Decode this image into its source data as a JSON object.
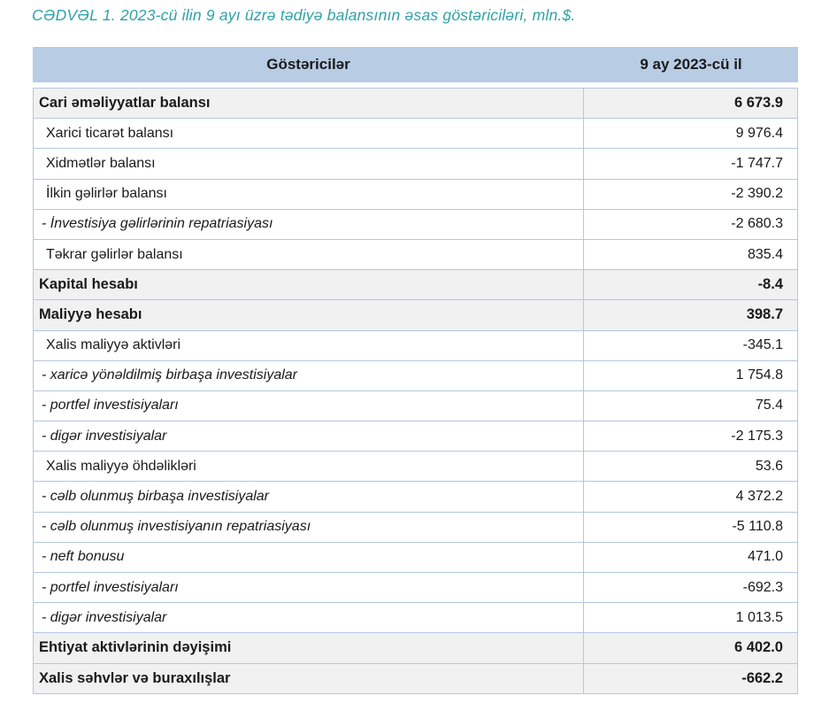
{
  "title": "CƏDVƏL 1. 2023-cü ilin 9 ayı üzrə tədiyə balansının əsas göstəriciləri, mln.$.",
  "table": {
    "columns": {
      "indicator": "Göstəricilər",
      "period": "9 ay 2023-cü il"
    },
    "rows": [
      {
        "label": "Cari əməliyyatlar balansı",
        "value": "6 673.9",
        "style": "bold"
      },
      {
        "label": "Xarici ticarət balansı",
        "value": "9 976.4",
        "style": "normal"
      },
      {
        "label": "Xidmətlər balansı",
        "value": "-1 747.7",
        "style": "normal"
      },
      {
        "label": "İlkin gəlirlər balansı",
        "value": "-2 390.2",
        "style": "normal"
      },
      {
        "label": "- İnvestisiya gəlirlərinin repatriasiyası",
        "value": "-2 680.3",
        "style": "italic"
      },
      {
        "label": "Təkrar gəlirlər balansı",
        "value": "835.4",
        "style": "normal"
      },
      {
        "label": "Kapital hesabı",
        "value": "-8.4",
        "style": "bold"
      },
      {
        "label": "Maliyyə hesabı",
        "value": "398.7",
        "style": "bold"
      },
      {
        "label": "Xalis maliyyə aktivləri",
        "value": "-345.1",
        "style": "normal"
      },
      {
        "label": "- xaricə yönəldilmiş birbaşa investisiyalar",
        "value": "1 754.8",
        "style": "italic"
      },
      {
        "label": "- portfel investisiyaları",
        "value": "75.4",
        "style": "italic"
      },
      {
        "label": "- digər investisiyalar",
        "value": "-2 175.3",
        "style": "italic"
      },
      {
        "label": "Xalis maliyyə öhdəlikləri",
        "value": "53.6",
        "style": "normal"
      },
      {
        "label": "- cəlb olunmuş birbaşa investisiyalar",
        "value": "4 372.2",
        "style": "italic"
      },
      {
        "label": "- cəlb olunmuş investisiyanın repatriasiyası",
        "value": "-5 110.8",
        "style": "italic"
      },
      {
        "label": "- neft bonusu",
        "value": "471.0",
        "style": "italic"
      },
      {
        "label": "- portfel investisiyaları",
        "value": "-692.3",
        "style": "italic"
      },
      {
        "label": "- digər investisiyalar",
        "value": "1 013.5",
        "style": "italic"
      },
      {
        "label": "Ehtiyat aktivlərinin dəyişimi",
        "value": "6 402.0",
        "style": "bold"
      },
      {
        "label": "Xalis səhvlər və buraxılışlar",
        "value": "-662.2",
        "style": "bold"
      }
    ]
  },
  "colors": {
    "accent_title": "#2FA2A9",
    "header_bg": "#B8CCE4",
    "row_alt_bg": "#F1F1F1",
    "border": "#B3C7E0",
    "text": "#1A1A1A"
  }
}
